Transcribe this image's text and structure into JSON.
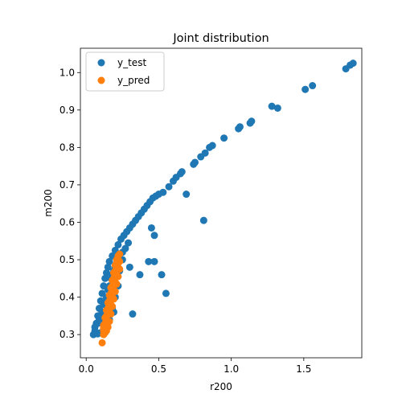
{
  "chart_data": {
    "type": "scatter",
    "title": "Joint distribution",
    "xlabel": "r200",
    "ylabel": "m200",
    "xlim": [
      -0.04,
      1.9
    ],
    "ylim": [
      0.238,
      1.065
    ],
    "xticks": [
      0.0,
      0.5,
      1.0,
      1.5
    ],
    "xtick_labels": [
      "0.0",
      "0.5",
      "1.0",
      "1.5"
    ],
    "yticks": [
      0.3,
      0.4,
      0.5,
      0.6,
      0.7,
      0.8,
      0.9,
      1.0
    ],
    "ytick_labels": [
      "0.3",
      "0.4",
      "0.5",
      "0.6",
      "0.7",
      "0.8",
      "0.9",
      "1.0"
    ],
    "grid": false,
    "legend_position": "top-left",
    "series": [
      {
        "name": "y_test",
        "color": "#1f77b4",
        "points": [
          [
            0.05,
            0.3
          ],
          [
            0.06,
            0.31
          ],
          [
            0.07,
            0.33
          ],
          [
            0.08,
            0.35
          ],
          [
            0.09,
            0.37
          ],
          [
            0.1,
            0.39
          ],
          [
            0.11,
            0.41
          ],
          [
            0.12,
            0.43
          ],
          [
            0.13,
            0.45
          ],
          [
            0.14,
            0.465
          ],
          [
            0.15,
            0.48
          ],
          [
            0.16,
            0.495
          ],
          [
            0.18,
            0.51
          ],
          [
            0.2,
            0.525
          ],
          [
            0.22,
            0.54
          ],
          [
            0.24,
            0.555
          ],
          [
            0.26,
            0.565
          ],
          [
            0.28,
            0.575
          ],
          [
            0.3,
            0.585
          ],
          [
            0.32,
            0.595
          ],
          [
            0.34,
            0.605
          ],
          [
            0.36,
            0.615
          ],
          [
            0.38,
            0.625
          ],
          [
            0.4,
            0.635
          ],
          [
            0.42,
            0.645
          ],
          [
            0.44,
            0.655
          ],
          [
            0.46,
            0.665
          ],
          [
            0.48,
            0.67
          ],
          [
            0.5,
            0.675
          ],
          [
            0.53,
            0.68
          ],
          [
            0.57,
            0.695
          ],
          [
            0.6,
            0.71
          ],
          [
            0.62,
            0.72
          ],
          [
            0.65,
            0.73
          ],
          [
            0.66,
            0.735
          ],
          [
            0.74,
            0.755
          ],
          [
            0.75,
            0.76
          ],
          [
            0.79,
            0.775
          ],
          [
            0.82,
            0.785
          ],
          [
            0.85,
            0.8
          ],
          [
            0.87,
            0.805
          ],
          [
            0.95,
            0.825
          ],
          [
            1.05,
            0.85
          ],
          [
            1.06,
            0.855
          ],
          [
            1.13,
            0.865
          ],
          [
            1.14,
            0.87
          ],
          [
            1.28,
            0.91
          ],
          [
            1.32,
            0.905
          ],
          [
            1.51,
            0.955
          ],
          [
            1.56,
            0.965
          ],
          [
            1.79,
            1.01
          ],
          [
            1.82,
            1.02
          ],
          [
            1.84,
            1.025
          ],
          [
            0.69,
            0.675
          ],
          [
            0.81,
            0.605
          ],
          [
            0.47,
            0.565
          ],
          [
            0.47,
            0.495
          ],
          [
            0.43,
            0.495
          ],
          [
            0.52,
            0.46
          ],
          [
            0.55,
            0.41
          ],
          [
            0.37,
            0.46
          ],
          [
            0.45,
            0.585
          ],
          [
            0.32,
            0.355
          ],
          [
            0.3,
            0.48
          ],
          [
            0.25,
            0.5
          ],
          [
            0.22,
            0.43
          ],
          [
            0.2,
            0.4
          ],
          [
            0.18,
            0.37
          ],
          [
            0.19,
            0.36
          ],
          [
            0.16,
            0.34
          ],
          [
            0.14,
            0.32
          ],
          [
            0.12,
            0.31
          ],
          [
            0.1,
            0.305
          ],
          [
            0.08,
            0.302
          ],
          [
            0.07,
            0.305
          ],
          [
            0.09,
            0.34
          ],
          [
            0.11,
            0.36
          ],
          [
            0.13,
            0.39
          ],
          [
            0.15,
            0.42
          ],
          [
            0.17,
            0.45
          ],
          [
            0.19,
            0.47
          ],
          [
            0.21,
            0.49
          ],
          [
            0.23,
            0.505
          ],
          [
            0.06,
            0.32
          ],
          [
            0.08,
            0.33
          ],
          [
            0.1,
            0.35
          ],
          [
            0.12,
            0.38
          ],
          [
            0.14,
            0.4
          ],
          [
            0.16,
            0.43
          ],
          [
            0.18,
            0.46
          ],
          [
            0.2,
            0.48
          ],
          [
            0.11,
            0.335
          ],
          [
            0.13,
            0.355
          ],
          [
            0.15,
            0.375
          ],
          [
            0.17,
            0.395
          ],
          [
            0.19,
            0.425
          ],
          [
            0.21,
            0.455
          ],
          [
            0.23,
            0.47
          ],
          [
            0.25,
            0.52
          ],
          [
            0.27,
            0.53
          ],
          [
            0.29,
            0.545
          ]
        ]
      },
      {
        "name": "y_pred",
        "color": "#ff7f0e",
        "points": [
          [
            0.11,
            0.278
          ],
          [
            0.12,
            0.3
          ],
          [
            0.12,
            0.31
          ],
          [
            0.13,
            0.32
          ],
          [
            0.13,
            0.33
          ],
          [
            0.14,
            0.34
          ],
          [
            0.14,
            0.35
          ],
          [
            0.15,
            0.36
          ],
          [
            0.15,
            0.37
          ],
          [
            0.16,
            0.38
          ],
          [
            0.16,
            0.39
          ],
          [
            0.17,
            0.4
          ],
          [
            0.17,
            0.41
          ],
          [
            0.18,
            0.42
          ],
          [
            0.18,
            0.43
          ],
          [
            0.19,
            0.44
          ],
          [
            0.19,
            0.45
          ],
          [
            0.2,
            0.46
          ],
          [
            0.2,
            0.47
          ],
          [
            0.21,
            0.48
          ],
          [
            0.21,
            0.49
          ],
          [
            0.22,
            0.5
          ],
          [
            0.22,
            0.51
          ],
          [
            0.23,
            0.515
          ],
          [
            0.14,
            0.31
          ],
          [
            0.15,
            0.32
          ],
          [
            0.16,
            0.335
          ],
          [
            0.17,
            0.355
          ],
          [
            0.18,
            0.375
          ],
          [
            0.19,
            0.395
          ],
          [
            0.2,
            0.415
          ],
          [
            0.21,
            0.435
          ],
          [
            0.22,
            0.455
          ],
          [
            0.23,
            0.475
          ],
          [
            0.23,
            0.495
          ],
          [
            0.12,
            0.325
          ],
          [
            0.13,
            0.345
          ],
          [
            0.14,
            0.365
          ],
          [
            0.15,
            0.385
          ],
          [
            0.16,
            0.405
          ],
          [
            0.17,
            0.425
          ],
          [
            0.18,
            0.445
          ],
          [
            0.19,
            0.465
          ],
          [
            0.2,
            0.485
          ],
          [
            0.21,
            0.5
          ],
          [
            0.13,
            0.305
          ],
          [
            0.16,
            0.36
          ],
          [
            0.18,
            0.4
          ],
          [
            0.2,
            0.44
          ],
          [
            0.22,
            0.48
          ],
          [
            0.12,
            0.318
          ],
          [
            0.14,
            0.33
          ],
          [
            0.17,
            0.38
          ],
          [
            0.19,
            0.42
          ],
          [
            0.21,
            0.46
          ]
        ]
      }
    ]
  }
}
